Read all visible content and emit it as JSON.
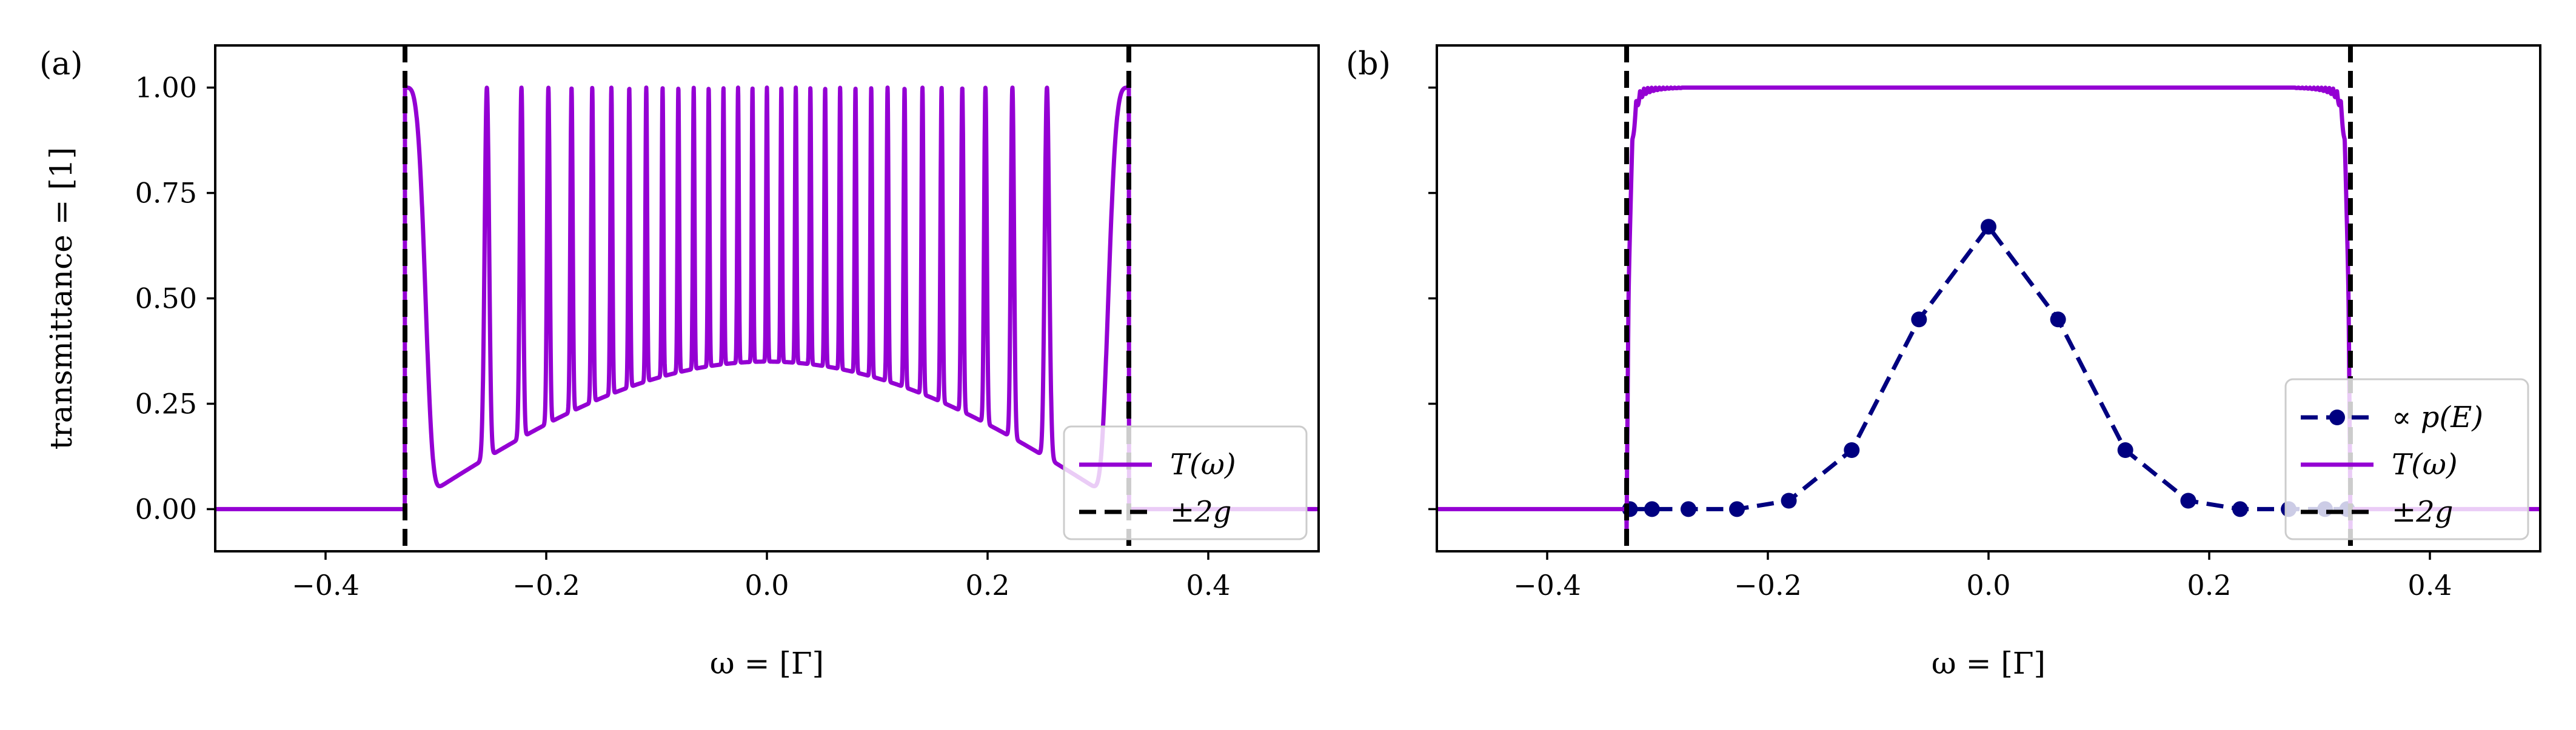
{
  "chart_data": [
    {
      "type": "line",
      "panel_label": "(a)",
      "xlabel": "ω = [Γ]",
      "ylabel": "transmittance = [1]",
      "xlim": [
        -0.5,
        0.5
      ],
      "ylim": [
        -0.1,
        1.1
      ],
      "xticks": [
        -0.4,
        -0.2,
        0.0,
        0.2,
        0.4
      ],
      "xtick_labels": [
        "−0.4",
        "−0.2",
        "0.0",
        "0.2",
        "0.4"
      ],
      "yticks": [
        0.0,
        0.25,
        0.5,
        0.75,
        1.0
      ],
      "ytick_labels": [
        "0.00",
        "0.25",
        "0.50",
        "0.75",
        "1.00"
      ],
      "show_ytick_labels": true,
      "grid": false,
      "legend_position": "lower right",
      "series": [
        {
          "name": "T(ω)",
          "kind": "oscillating_transmission",
          "color": "#9400D3",
          "style": "solid",
          "band_edges": [
            -0.328,
            0.328
          ],
          "num_peaks": 32,
          "peak_max": 1.0,
          "envelope_min_center": 0.35,
          "envelope_min_edge": 0.0,
          "outside_value": 0.0
        },
        {
          "name": "±2g",
          "kind": "vertical_lines",
          "color": "#000000",
          "style": "dashed",
          "x": [
            -0.328,
            0.328
          ]
        }
      ]
    },
    {
      "type": "line",
      "panel_label": "(b)",
      "xlabel": "ω = [Γ]",
      "ylabel": "",
      "xlim": [
        -0.5,
        0.5
      ],
      "ylim": [
        -0.1,
        1.1
      ],
      "xticks": [
        -0.4,
        -0.2,
        0.0,
        0.2,
        0.4
      ],
      "xtick_labels": [
        "−0.4",
        "−0.2",
        "0.0",
        "0.2",
        "0.4"
      ],
      "yticks": [
        0.0,
        0.25,
        0.5,
        0.75,
        1.0
      ],
      "ytick_labels": [],
      "show_ytick_labels": false,
      "grid": false,
      "legend_position": "lower right",
      "series": [
        {
          "name": "∝ p(E)",
          "kind": "markers_dashed",
          "color": "#000080",
          "style": "dashed",
          "x": [
            -0.325,
            -0.305,
            -0.272,
            -0.228,
            -0.181,
            -0.124,
            -0.063,
            0.0,
            0.063,
            0.124,
            0.181,
            0.228,
            0.272,
            0.305,
            0.325
          ],
          "y": [
            0.0,
            0.0,
            0.0,
            0.0,
            0.02,
            0.14,
            0.45,
            0.67,
            0.45,
            0.14,
            0.02,
            0.0,
            0.0,
            0.0,
            0.0
          ]
        },
        {
          "name": "T(ω)",
          "kind": "flat_top_transmission",
          "color": "#9400D3",
          "style": "solid",
          "band_edges": [
            -0.328,
            0.328
          ],
          "plateau": 1.0,
          "outside_value": 0.0
        },
        {
          "name": "±2g",
          "kind": "vertical_lines",
          "color": "#000000",
          "style": "dashed",
          "x": [
            -0.328,
            0.328
          ]
        }
      ]
    }
  ]
}
